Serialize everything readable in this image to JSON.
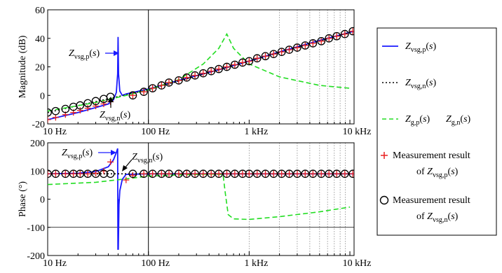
{
  "chart_data": [
    {
      "type": "line",
      "title": "",
      "xlabel": "",
      "ylabel": "Magnitude (dB)",
      "xscale": "log",
      "xlim": [
        10,
        11000
      ],
      "ylim": [
        -20,
        60
      ],
      "yticks": [
        -20,
        0,
        20,
        40,
        60
      ],
      "xtick_labels": [
        {
          "value": 10,
          "label": "10 Hz"
        },
        {
          "value": 100,
          "label": "100 Hz"
        },
        {
          "value": 1000,
          "label": "1 kHz"
        },
        {
          "value": 10000,
          "label": "10 kHz"
        }
      ],
      "grid": "vertical dotted lines at selected frequencies",
      "series": [
        {
          "name": "Z_vsg,p(s)",
          "style": "solid",
          "color": "#1a1aff",
          "x": [
            10,
            20,
            30,
            40,
            45,
            48,
            49.5,
            50,
            50.5,
            52,
            55,
            60,
            100,
            200,
            500,
            1000,
            2000,
            5000,
            11000
          ],
          "y": [
            -17,
            -12,
            -8.5,
            -6,
            -3,
            2,
            15,
            41,
            15,
            3,
            0,
            1,
            4.5,
            10.5,
            18,
            24,
            30.5,
            38.5,
            45
          ]
        },
        {
          "name": "Z_vsg,n(s)",
          "style": "dotted",
          "color": "#000000",
          "x": [
            10,
            100,
            1000,
            11000
          ],
          "y": [
            -12,
            4,
            24,
            45
          ]
        },
        {
          "name": "Z_g,p(s) Z_g,n(s)",
          "style": "dashed",
          "color": "#22dd22",
          "x": [
            10,
            30,
            60,
            100,
            200,
            350,
            500,
            600,
            700,
            1000,
            2000,
            5000,
            10000
          ],
          "y": [
            -11,
            -5,
            0,
            4,
            11,
            22,
            33,
            43,
            33,
            22,
            13,
            7,
            5
          ]
        },
        {
          "name": "Measurement result of Z_vsg,p(s)",
          "marker": "+",
          "color": "#e82020",
          "x": [
            10,
            12,
            15,
            18,
            21,
            25,
            30,
            36,
            42,
            70,
            90,
            110,
            135,
            160,
            200,
            240,
            290,
            350,
            420,
            500,
            600,
            720,
            860,
            1000,
            1200,
            1450,
            1750,
            2100,
            2500,
            3000,
            3600,
            4300,
            5200,
            6200,
            7400,
            8900,
            10700
          ],
          "y": [
            -17,
            -15.5,
            -13.5,
            -12,
            -10.5,
            -9,
            -7.5,
            -6,
            -4.5,
            0,
            2.5,
            5,
            7,
            9,
            10.5,
            12.5,
            14,
            15.5,
            17,
            18.5,
            20,
            21.5,
            23,
            24,
            26,
            27.5,
            29,
            30.5,
            32,
            33.5,
            35,
            36.5,
            38,
            40,
            41.5,
            43,
            45
          ]
        },
        {
          "name": "Measurement result of Z_vsg,n(s)",
          "marker": "o",
          "color": "#000000",
          "x": [
            10,
            12,
            15,
            18,
            21,
            25,
            30,
            36,
            42,
            70,
            90,
            110,
            135,
            160,
            200,
            240,
            290,
            350,
            420,
            500,
            600,
            720,
            860,
            1000,
            1200,
            1450,
            1750,
            2100,
            2500,
            3000,
            3600,
            4300,
            5200,
            6200,
            7400,
            8900,
            10700
          ],
          "y": [
            -12,
            -11,
            -9.5,
            -8,
            -7,
            -5.5,
            -4,
            -2.5,
            -1,
            0,
            2.5,
            5,
            7,
            9,
            10.5,
            12.5,
            14,
            15.5,
            17,
            18.5,
            20,
            21.5,
            23,
            24,
            26,
            27.5,
            29,
            30.5,
            32,
            33.5,
            35,
            36.5,
            38,
            40,
            41.5,
            43,
            45
          ]
        }
      ],
      "annotations": [
        "Z_vsg,p(s)",
        "Z_vsg,n(s)"
      ]
    },
    {
      "type": "line",
      "title": "",
      "xlabel": "",
      "ylabel": "Phase (°)",
      "xscale": "log",
      "xlim": [
        10,
        11000
      ],
      "ylim": [
        -200,
        200
      ],
      "yticks": [
        -200,
        -100,
        0,
        100,
        200
      ],
      "xtick_labels": [
        {
          "value": 10,
          "label": "10 Hz"
        },
        {
          "value": 100,
          "label": "100 Hz"
        },
        {
          "value": 1000,
          "label": "1 kHz"
        },
        {
          "value": 10000,
          "label": "10 kHz"
        }
      ],
      "series": [
        {
          "name": "Z_vsg,p(s)",
          "style": "solid",
          "color": "#1a1aff",
          "x": [
            10,
            20,
            30,
            40,
            45,
            48,
            49.5,
            49.8,
            50,
            50.2,
            50.5,
            51,
            52,
            55,
            60,
            100,
            11000
          ],
          "y": [
            90,
            92,
            98,
            115,
            140,
            165,
            180,
            -180,
            0,
            -180,
            -120,
            -20,
            30,
            70,
            88,
            90,
            90
          ]
        },
        {
          "name": "Z_vsg,n(s)",
          "style": "dotted",
          "color": "#000000",
          "x": [
            10,
            11000
          ],
          "y": [
            90,
            90
          ]
        },
        {
          "name": "Z_g,p(s) Z_g,n(s)",
          "style": "dashed",
          "color": "#22dd22",
          "x": [
            10,
            30,
            60,
            100,
            200,
            400,
            550,
            580,
            620,
            700,
            1000,
            2000,
            5000,
            10000
          ],
          "y": [
            52,
            60,
            72,
            82,
            86,
            89,
            88,
            20,
            -55,
            -70,
            -72,
            -62,
            -45,
            -28
          ]
        },
        {
          "name": "Measurement result of Z_vsg,p(s)",
          "marker": "+",
          "color": "#e82020",
          "x": [
            10,
            12,
            15,
            18,
            21,
            25,
            30,
            36,
            42,
            60,
            70,
            90,
            110,
            135,
            160,
            200,
            240,
            290,
            350,
            420,
            500,
            600,
            720,
            860,
            1000,
            1200,
            1450,
            1750,
            2100,
            2500,
            3000,
            3600,
            4300,
            5200,
            6200,
            7400,
            8900,
            10700
          ],
          "y": [
            90,
            90,
            90,
            90,
            90,
            90,
            92,
            100,
            132,
            68,
            85,
            90,
            90,
            90,
            90,
            90,
            90,
            90,
            90,
            90,
            90,
            90,
            90,
            90,
            90,
            90,
            90,
            90,
            90,
            90,
            90,
            90,
            90,
            90,
            90,
            90,
            90,
            90
          ]
        },
        {
          "name": "Measurement result of Z_vsg,n(s)",
          "marker": "o",
          "color": "#000000",
          "x": [
            10,
            12,
            15,
            18,
            21,
            25,
            30,
            36,
            42,
            70,
            90,
            110,
            135,
            160,
            200,
            240,
            290,
            350,
            420,
            500,
            600,
            720,
            860,
            1000,
            1200,
            1450,
            1750,
            2100,
            2500,
            3000,
            3600,
            4300,
            5200,
            6200,
            7400,
            8900,
            10700
          ],
          "y": [
            90,
            90,
            90,
            90,
            90,
            90,
            90,
            90,
            90,
            90,
            90,
            90,
            90,
            90,
            90,
            90,
            90,
            90,
            90,
            90,
            90,
            90,
            90,
            90,
            90,
            90,
            90,
            90,
            90,
            90,
            90,
            90,
            90,
            90,
            90,
            90,
            90
          ]
        }
      ],
      "annotations": [
        "Z_vsg,p(s)",
        "Z_vsg,n(s)"
      ]
    }
  ],
  "legend": {
    "placement": "right",
    "items": [
      {
        "line_style": "solid",
        "color": "#1a1aff",
        "label_main": "Z",
        "label_sub": "vsg,p",
        "label_tail": "(s)"
      },
      {
        "line_style": "dotted",
        "color": "#000000",
        "label_main": "Z",
        "label_sub": "vsg,n",
        "label_tail": "(s)"
      },
      {
        "line_style": "dashed",
        "color": "#22dd22",
        "label_main": "Z",
        "label_sub": "g,p",
        "label_tail": "(s)",
        "label2_main": "Z",
        "label2_sub": "g,n",
        "label2_tail": "(s)"
      },
      {
        "marker": "+",
        "color": "#e82020",
        "line1": "Measurement result",
        "prefix": "of ",
        "label_main": "Z",
        "label_sub": "vsg,p",
        "label_tail": "(s)"
      },
      {
        "marker": "o",
        "color": "#000000",
        "line1": "Measurement result",
        "prefix": "of ",
        "label_main": "Z",
        "label_sub": "vsg,n",
        "label_tail": "(s)"
      }
    ]
  }
}
